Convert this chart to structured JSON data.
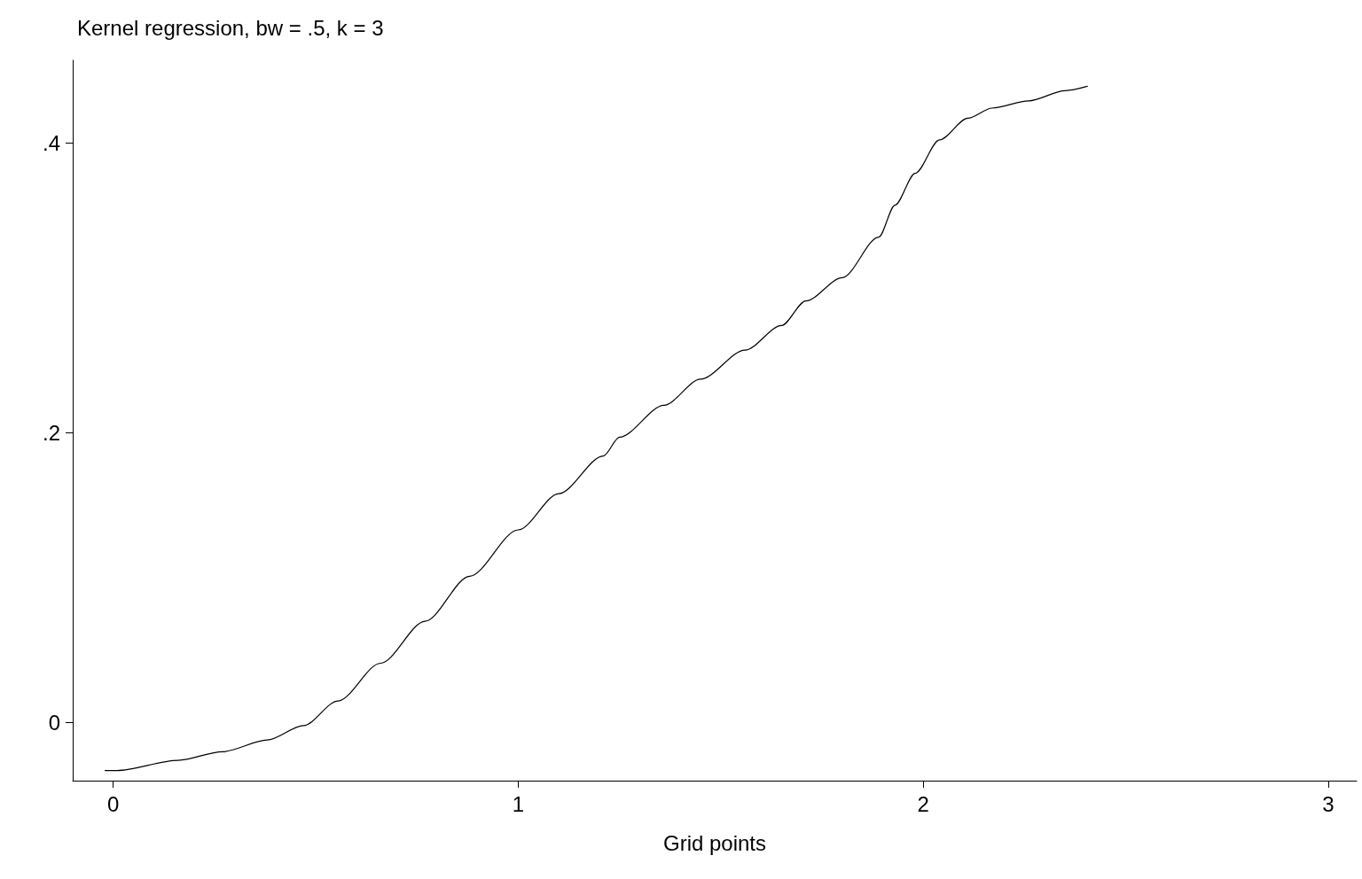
{
  "chart_data": {
    "type": "line",
    "title": "Kernel regression, bw = .5, k = 3",
    "xlabel": "Grid points",
    "x": [
      -0.02,
      0.009,
      0.16,
      0.27,
      0.38,
      0.47,
      0.555,
      0.66,
      0.77,
      0.88,
      1.0,
      1.1,
      1.21,
      1.25,
      1.36,
      1.45,
      1.56,
      1.65,
      1.71,
      1.8,
      1.89,
      1.93,
      1.98,
      2.04,
      2.11,
      2.17,
      2.26,
      2.35,
      2.405
    ],
    "series": [
      {
        "color": "#000000",
        "values": [
          -0.033,
          -0.033,
          -0.026,
          -0.02,
          -0.012,
          -0.002,
          0.015,
          0.041,
          0.07,
          0.101,
          0.133,
          0.158,
          0.184,
          0.197,
          0.219,
          0.237,
          0.257,
          0.274,
          0.291,
          0.307,
          0.335,
          0.357,
          0.379,
          0.402,
          0.417,
          0.424,
          0.429,
          0.436,
          0.439
        ]
      }
    ],
    "xlim": [
      -0.1,
      3.07
    ],
    "ylim": [
      -0.04,
      0.457
    ],
    "xticks": [
      0,
      1,
      2,
      3
    ],
    "yticks": [
      0,
      {
        "value": 0.2,
        "label": ".2"
      },
      {
        "value": 0.4,
        "label": ".4"
      }
    ],
    "grid": false,
    "marker": "none",
    "line_style": "solid"
  }
}
